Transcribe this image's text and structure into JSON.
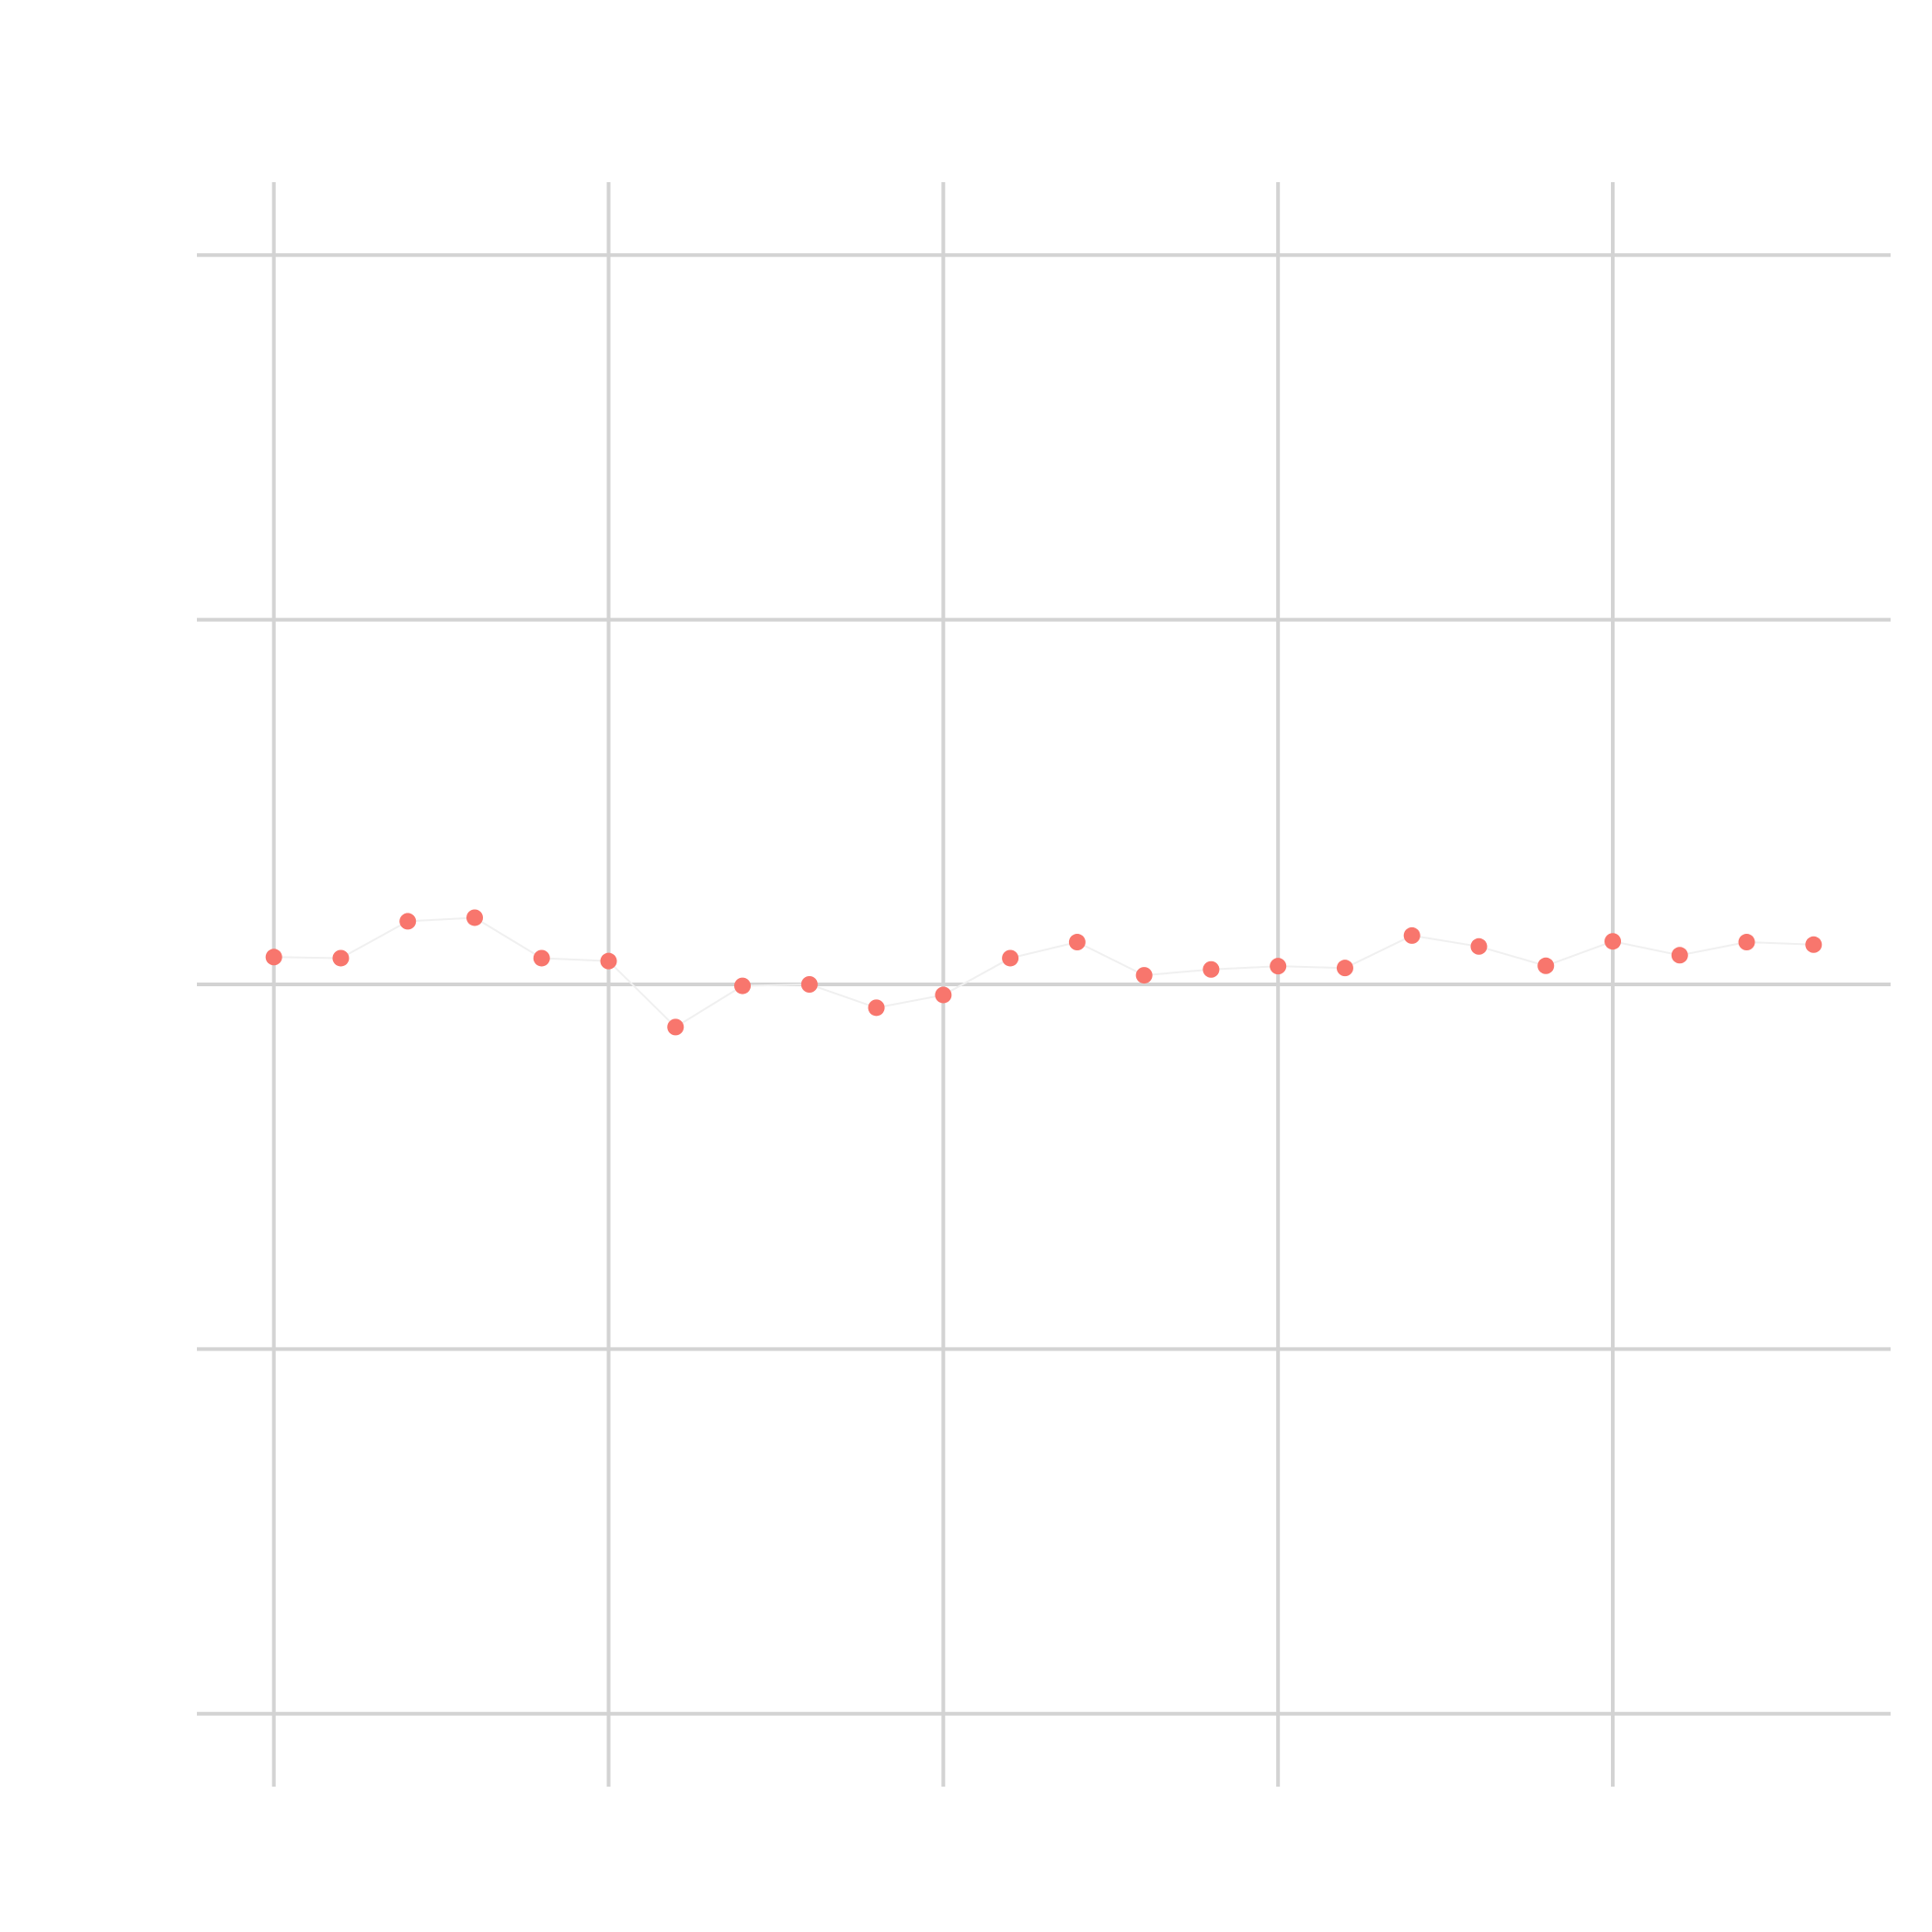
{
  "chart_data": {
    "type": "scatter",
    "title": "",
    "xlabel": "",
    "ylabel": "",
    "grid": true,
    "legend": "none",
    "xlim": [
      -1.15,
      24.15
    ],
    "ylim": [
      -2.2,
      2.2
    ],
    "x_gridlines": [
      0,
      5,
      10,
      15,
      20
    ],
    "y_gridlines": [
      -2,
      -1,
      0,
      1,
      2
    ],
    "series": [
      {
        "color": "#f8766d",
        "line_color": "#f0f0f0",
        "x": [
          0,
          1,
          2,
          3,
          4,
          5,
          6,
          7,
          8,
          9,
          10,
          11,
          12,
          13,
          14,
          15,
          16,
          17,
          18,
          19,
          20,
          21,
          22,
          23
        ],
        "y": [
          0.075,
          0.072,
          0.173,
          0.183,
          0.072,
          0.064,
          -0.117,
          -0.004,
          0.0,
          -0.064,
          -0.029,
          0.072,
          0.116,
          0.025,
          0.041,
          0.05,
          0.045,
          0.134,
          0.104,
          0.051,
          0.118,
          0.08,
          0.116,
          0.109
        ]
      }
    ]
  }
}
